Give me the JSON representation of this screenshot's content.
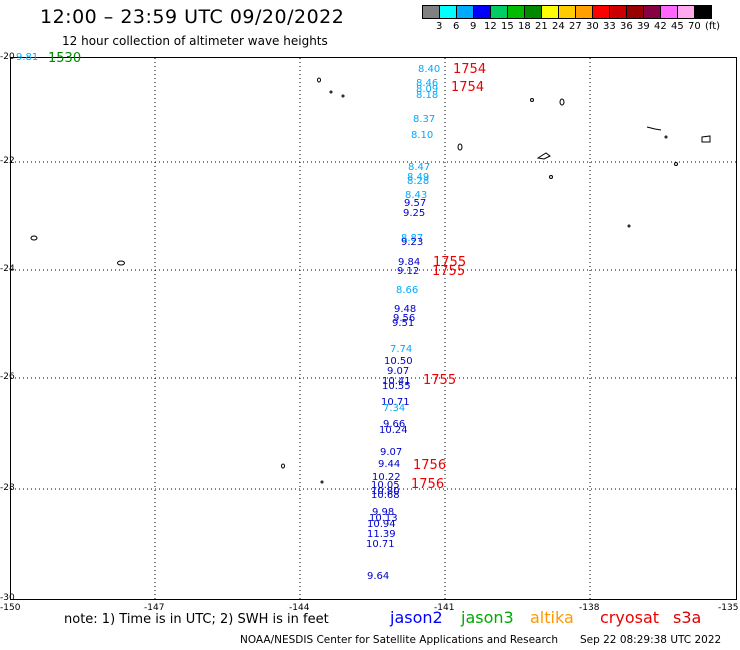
{
  "header": {
    "title": "12:00 – 23:59 UTC 09/20/2022",
    "subtitle": "12 hour collection of altimeter wave heights"
  },
  "color_scale": {
    "colors": [
      "#808080",
      "#00ffff",
      "#00aaff",
      "#0000ff",
      "#00cc66",
      "#00bb00",
      "#008800",
      "#ffff00",
      "#ffcc00",
      "#ffa000",
      "#ff0000",
      "#cc0000",
      "#990000",
      "#880044",
      "#ff66ff",
      "#ffaaee",
      "#000000"
    ],
    "labels": [
      "3",
      "6",
      "9",
      "12",
      "15",
      "18",
      "21",
      "24",
      "27",
      "30",
      "33",
      "36",
      "39",
      "42",
      "45",
      "70",
      "(ft)"
    ]
  },
  "axes": {
    "x_ticks": [
      "-150",
      "-147",
      "-144",
      "-141",
      "-138",
      "-135"
    ],
    "y_ticks": [
      "-20",
      "-22",
      "-24",
      "-26",
      "-28",
      "-30"
    ]
  },
  "wave_heights": {
    "values": [
      "9.81",
      "8.40",
      "8.46",
      "8.09",
      "8.18",
      "8.37",
      "8.10",
      "8.47",
      "8.49",
      "8.28",
      "8.43",
      "9.57",
      "9.25",
      "8.87",
      "9.23",
      "9.84",
      "9.12",
      "8.66",
      "9.48",
      "9.56",
      "9.51",
      "7.74",
      "10.50",
      "9.07",
      "10.41",
      "10.55",
      "10.71",
      "7.34",
      "9.66",
      "10.24",
      "9.07",
      "9.44",
      "10.22",
      "10.05",
      "10.80",
      "10.68",
      "9.98",
      "10.13",
      "10.94",
      "11.39",
      "10.71",
      "9.64"
    ],
    "colors": [
      "#00aaff",
      "#00aaff",
      "#00aaff",
      "#00aaff",
      "#00aaff",
      "#00aaff",
      "#00aaff",
      "#00aaff",
      "#00aaff",
      "#00aaff",
      "#00aaff",
      "#0000cc",
      "#0000cc",
      "#00aaff",
      "#0000cc",
      "#0000cc",
      "#0000cc",
      "#00aaff",
      "#0000cc",
      "#0000cc",
      "#0000cc",
      "#00aaff",
      "#0000cc",
      "#0000cc",
      "#0000cc",
      "#0000cc",
      "#0000cc",
      "#00aaff",
      "#0000cc",
      "#0000cc",
      "#0000cc",
      "#0000cc",
      "#0000cc",
      "#0000cc",
      "#0000cc",
      "#0000cc",
      "#0000cc",
      "#0000cc",
      "#0000cc",
      "#0000cc",
      "#0000cc",
      "#0000cc"
    ]
  },
  "pass_times": {
    "values": [
      "1530",
      "1754",
      "1754",
      "1755",
      "1755",
      "1755",
      "1756",
      "1756"
    ],
    "colors": [
      "#008800",
      "#ee0000",
      "#ee0000",
      "#ee0000",
      "#ee0000",
      "#ee0000",
      "#ee0000",
      "#ee0000"
    ]
  },
  "footer": {
    "note": "note: 1) Time is in UTC; 2) SWH is in feet",
    "satellites": [
      {
        "name": "jason2",
        "color": "#0000ff"
      },
      {
        "name": "jason3",
        "color": "#00aa00"
      },
      {
        "name": "altika",
        "color": "#ff9900"
      },
      {
        "name": "cryosat",
        "color": "#ee0000"
      },
      {
        "name": "s3a",
        "color": "#dd0000"
      }
    ],
    "credit": "NOAA/NESDIS Center for Satellite Applications and Research",
    "timestamp": "Sep 22 08:29:38 UTC 2022"
  }
}
